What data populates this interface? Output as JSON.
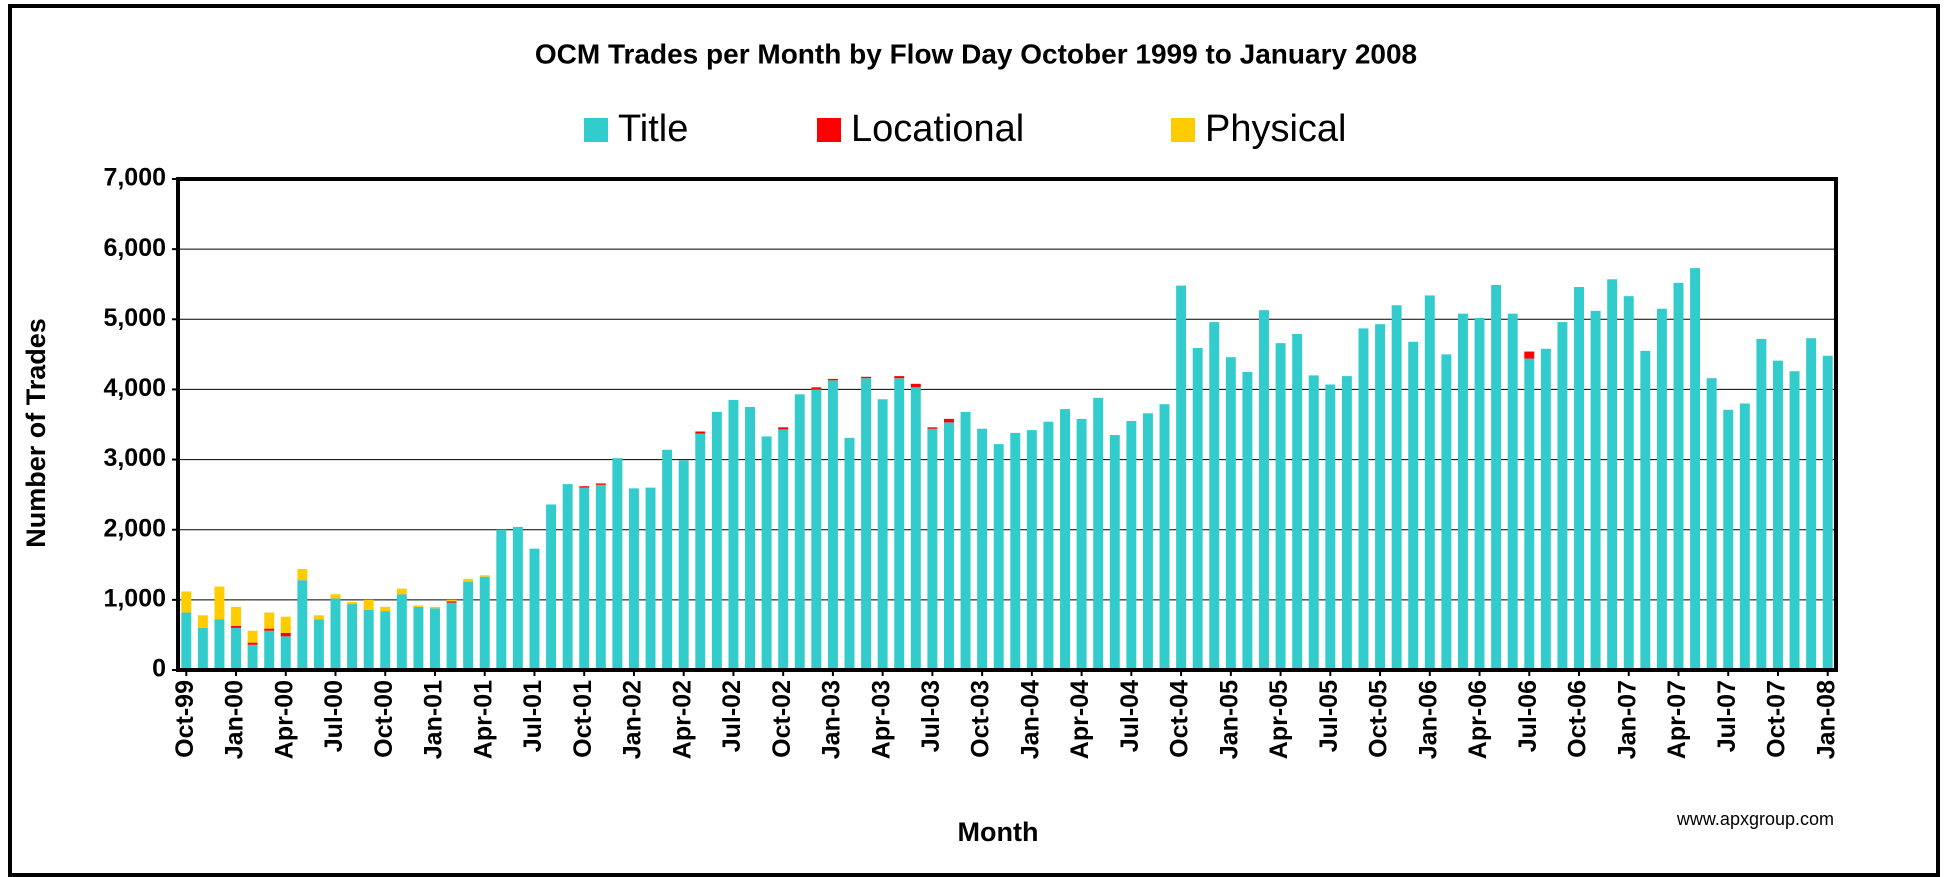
{
  "chart_data": {
    "type": "stacked_bar",
    "title": "OCM Trades per Month by Flow Day October 1999 to January 2008",
    "x_label": "Month",
    "y_label": "Number of Trades",
    "annotation": "www.apxgroup.com",
    "categories": [
      "Oct-99",
      null,
      null,
      "Jan-00",
      null,
      null,
      "Apr-00",
      null,
      null,
      "Jul-00",
      null,
      null,
      "Oct-00",
      null,
      null,
      "Jan-01",
      null,
      null,
      "Apr-01",
      null,
      null,
      "Jul-01",
      null,
      null,
      "Oct-01",
      null,
      null,
      "Jan-02",
      null,
      null,
      "Apr-02",
      null,
      null,
      "Jul-02",
      null,
      null,
      "Oct-02",
      null,
      null,
      "Jan-03",
      null,
      null,
      "Apr-03",
      null,
      null,
      "Jul-03",
      null,
      null,
      "Oct-03",
      null,
      null,
      "Jan-04",
      null,
      null,
      "Apr-04",
      null,
      null,
      "Jul-04",
      null,
      null,
      "Oct-04",
      null,
      null,
      "Jan-05",
      null,
      null,
      "Apr-05",
      null,
      null,
      "Jul-05",
      null,
      null,
      "Oct-05",
      null,
      null,
      "Jan-06",
      null,
      null,
      "Apr-06",
      null,
      null,
      "Jul-06",
      null,
      null,
      "Oct-06",
      null,
      null,
      "Jan-07",
      null,
      null,
      "Apr-07",
      null,
      null,
      "Jul-07",
      null,
      null,
      "Oct-07",
      null,
      null,
      "Jan-08"
    ],
    "series": [
      {
        "name": "Title",
        "color": "#33cccc",
        "values": [
          820,
          600,
          720,
          600,
          360,
          560,
          480,
          1280,
          720,
          1020,
          940,
          860,
          840,
          1080,
          900,
          880,
          960,
          1260,
          1330,
          2000,
          2040,
          1730,
          2360,
          2650,
          2600,
          2640,
          3020,
          2590,
          2600,
          3140,
          2990,
          3370,
          3680,
          3850,
          3750,
          3330,
          3430,
          3930,
          4000,
          4130,
          3310,
          4160,
          3860,
          4160,
          4030,
          3440,
          3530,
          3680,
          3440,
          3220,
          3380,
          3420,
          3540,
          3720,
          3580,
          3880,
          3350,
          3550,
          3660,
          3790,
          5480,
          4590,
          4960,
          4460,
          4250,
          5130,
          4660,
          4790,
          4200,
          4070,
          4190,
          4870,
          4930,
          5200,
          4680,
          5340,
          4500,
          5080,
          5020,
          5490,
          5080,
          4440,
          4580,
          4960,
          5460,
          5120,
          5570,
          5330,
          4550,
          5150,
          5520,
          5730,
          4160,
          3710,
          3800,
          4720,
          4410,
          4260,
          4730,
          4480
        ]
      },
      {
        "name": "Locational",
        "color": "#ff0000",
        "values": [
          0,
          0,
          0,
          30,
          30,
          30,
          50,
          0,
          0,
          0,
          0,
          0,
          0,
          0,
          0,
          0,
          20,
          0,
          0,
          0,
          0,
          0,
          0,
          0,
          20,
          20,
          0,
          0,
          0,
          0,
          0,
          30,
          0,
          0,
          0,
          0,
          30,
          0,
          30,
          20,
          0,
          20,
          0,
          30,
          50,
          20,
          50,
          0,
          0,
          0,
          0,
          0,
          0,
          0,
          0,
          0,
          0,
          0,
          0,
          0,
          0,
          0,
          0,
          0,
          0,
          0,
          0,
          0,
          0,
          0,
          0,
          0,
          0,
          0,
          0,
          0,
          0,
          0,
          0,
          0,
          0,
          100,
          0,
          0,
          0,
          0,
          0,
          0,
          0,
          0,
          0,
          0,
          0,
          0,
          0,
          0,
          0,
          0,
          0,
          0
        ]
      },
      {
        "name": "Physical",
        "color": "#ffcc00",
        "values": [
          300,
          180,
          470,
          270,
          170,
          230,
          230,
          160,
          60,
          60,
          30,
          140,
          60,
          80,
          20,
          20,
          20,
          40,
          20,
          0,
          0,
          0,
          0,
          0,
          0,
          0,
          0,
          0,
          0,
          0,
          0,
          0,
          0,
          0,
          0,
          0,
          0,
          0,
          0,
          0,
          0,
          0,
          0,
          0,
          0,
          0,
          0,
          0,
          0,
          0,
          0,
          0,
          0,
          0,
          0,
          0,
          0,
          0,
          0,
          0,
          0,
          0,
          0,
          0,
          0,
          0,
          0,
          0,
          0,
          0,
          0,
          0,
          0,
          0,
          0,
          0,
          0,
          0,
          0,
          0,
          0,
          0,
          0,
          0,
          0,
          0,
          0,
          0,
          0,
          0,
          0,
          0,
          0,
          0,
          0,
          0,
          0,
          0,
          0,
          0
        ]
      }
    ],
    "ylim": [
      0,
      7000
    ],
    "yticks": [
      0,
      {
        "value": 1000,
        "label": "1,000"
      },
      {
        "value": 2000,
        "label": "2,000"
      },
      {
        "value": 3000,
        "label": "3,000"
      },
      {
        "value": 4000,
        "label": "4,000"
      },
      {
        "value": 5000,
        "label": "5,000"
      },
      {
        "value": 6000,
        "label": "6,000"
      },
      {
        "value": 7000,
        "label": "7,000"
      }
    ],
    "grid": true
  }
}
